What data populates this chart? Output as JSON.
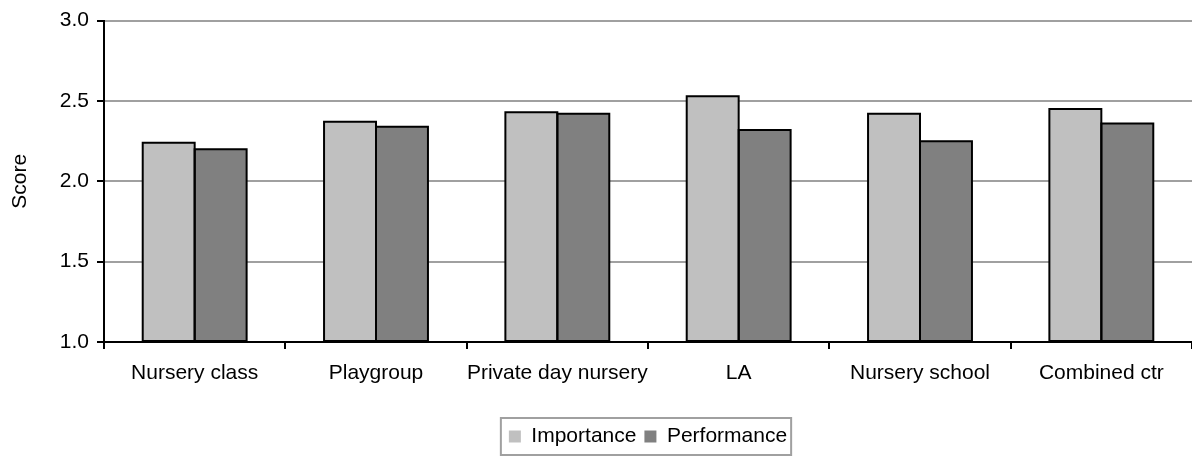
{
  "chart_data": {
    "type": "bar",
    "categories": [
      "Nursery class",
      "Playgroup",
      "Private day nursery",
      "LA",
      "Nursery school",
      "Combined ctr"
    ],
    "series": [
      {
        "name": "Importance",
        "color": "#c0c0c0",
        "values": [
          2.24,
          2.37,
          2.43,
          2.53,
          2.42,
          2.45
        ]
      },
      {
        "name": "Performance",
        "color": "#808080",
        "values": [
          2.2,
          2.34,
          2.42,
          2.32,
          2.25,
          2.36
        ]
      }
    ],
    "ylabel": "Score",
    "ylim": [
      1,
      3
    ],
    "yticks": [
      {
        "value": 1,
        "label": "1.0"
      },
      1.5,
      {
        "value": 2,
        "label": "2.0"
      },
      2.5,
      {
        "value": 3,
        "label": "3.0"
      }
    ],
    "grid": "y",
    "legend": "bottom"
  }
}
